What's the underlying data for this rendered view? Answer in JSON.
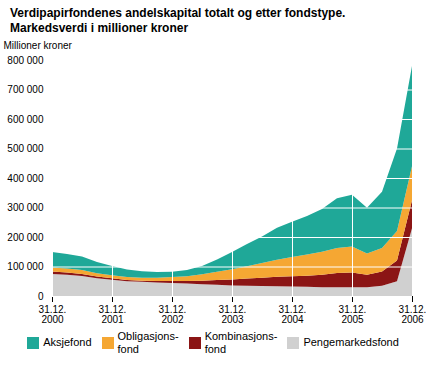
{
  "chart_data": {
    "type": "area",
    "stacked": true,
    "title": "Verdipapirfondenes andelskapital totalt og etter fondstype.\nMarkedsverdi i millioner kroner",
    "ylabel": "Millioner kroner",
    "categories": [
      "31.12.\n2000",
      null,
      null,
      null,
      "31.12.\n2001",
      null,
      null,
      null,
      "31.12.\n2002",
      null,
      null,
      null,
      "31.12.\n2003",
      null,
      null,
      null,
      "31.12.\n2004",
      null,
      null,
      null,
      "31.12.\n2005",
      null,
      null,
      null,
      "31.12.\n2006"
    ],
    "series": [
      {
        "name": "Pengemarkedsfond",
        "color": "#d0d0d0",
        "values": [
          75000,
          72000,
          68000,
          60000,
          55000,
          50000,
          48000,
          46000,
          44000,
          42000,
          40000,
          38000,
          36000,
          35000,
          34000,
          33000,
          32000,
          31000,
          30000,
          30000,
          30000,
          30000,
          35000,
          50000,
          230000
        ]
      },
      {
        "name": "Kombinasjons-\nfond",
        "color": "#8b1515",
        "values": [
          8000,
          7500,
          7000,
          6000,
          5000,
          4000,
          4000,
          5000,
          7000,
          9000,
          12000,
          16000,
          20000,
          24000,
          28000,
          32000,
          35000,
          38000,
          42000,
          48000,
          50000,
          42000,
          48000,
          70000,
          95000
        ]
      },
      {
        "name": "Obligasjons-\nfond",
        "color": "#f5a733",
        "values": [
          14000,
          14000,
          13000,
          11000,
          10000,
          10000,
          10000,
          11000,
          13000,
          16000,
          22000,
          28000,
          35000,
          42000,
          50000,
          58000,
          65000,
          72000,
          78000,
          85000,
          88000,
          72000,
          80000,
          100000,
          115000
        ]
      },
      {
        "name": "Aksjefond",
        "color": "#1fa898",
        "values": [
          52000,
          49000,
          46000,
          38000,
          32000,
          26000,
          22000,
          19000,
          18000,
          21000,
          28000,
          42000,
          58000,
          75000,
          90000,
          108000,
          120000,
          130000,
          145000,
          168000,
          175000,
          155000,
          190000,
          280000,
          340000
        ]
      }
    ],
    "ylim": [
      0,
      800000
    ],
    "yticks": [
      0,
      {
        "value": 100000,
        "label": "100 000"
      },
      {
        "value": 200000,
        "label": "200 000"
      },
      {
        "value": 300000,
        "label": "300 000"
      },
      {
        "value": 400000,
        "label": "400 000"
      },
      {
        "value": 500000,
        "label": "500 000"
      },
      {
        "value": 600000,
        "label": "600 000"
      },
      {
        "value": 700000,
        "label": "700 000"
      },
      {
        "value": 800000,
        "label": "800 000"
      }
    ],
    "grid": true,
    "legend": "bottom"
  }
}
